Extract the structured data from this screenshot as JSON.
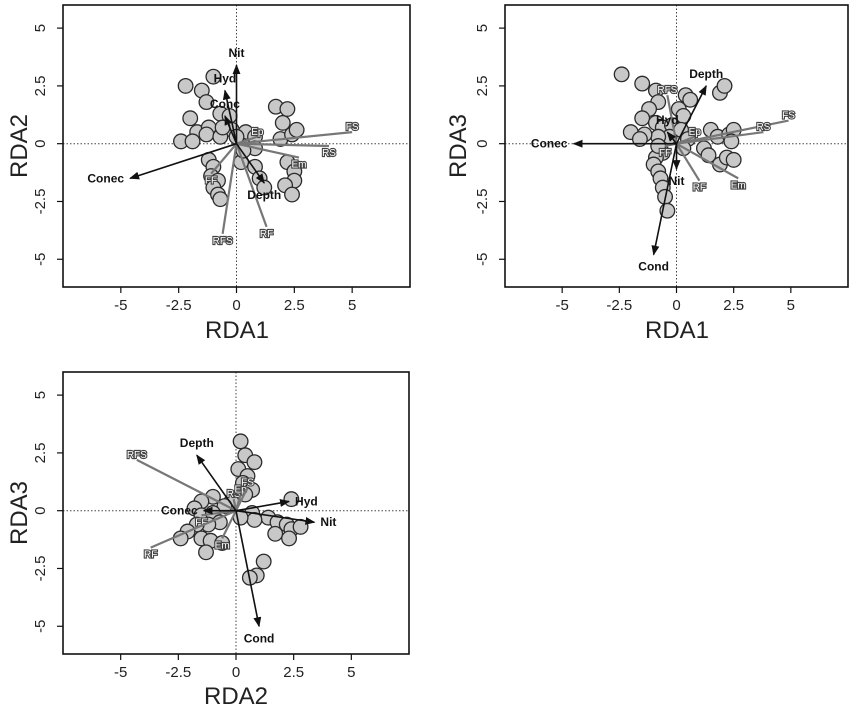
{
  "chart_data": [
    {
      "type": "scatter",
      "xlabel": "RDA1",
      "ylabel": "RDA2",
      "xlim": [
        -7.5,
        7.5
      ],
      "ylim": [
        -6.2,
        6
      ],
      "xticks": [
        "-5",
        "-2.5",
        "0",
        "2.5",
        "5"
      ],
      "yticks": [
        "-5",
        "-2.5",
        "0",
        "2.5",
        "5"
      ],
      "points": [
        [
          -2.2,
          2.5
        ],
        [
          -1.5,
          2.3
        ],
        [
          -1.0,
          2.9
        ],
        [
          -1.3,
          1.8
        ],
        [
          -2.0,
          1.1
        ],
        [
          -1.7,
          0.5
        ],
        [
          -1.2,
          0.7
        ],
        [
          -0.7,
          1.3
        ],
        [
          -0.3,
          1.2
        ],
        [
          -0.2,
          0.6
        ],
        [
          -2.4,
          0.1
        ],
        [
          -1.9,
          0.1
        ],
        [
          -1.3,
          0.4
        ],
        [
          -0.7,
          0.3
        ],
        [
          -0.6,
          0.7
        ],
        [
          0.4,
          0.5
        ],
        [
          0.8,
          0.3
        ],
        [
          0.3,
          -0.1
        ],
        [
          0.8,
          -0.2
        ],
        [
          -1.2,
          -0.7
        ],
        [
          -1.0,
          -1.0
        ],
        [
          -1.1,
          -1.4
        ],
        [
          -0.8,
          -1.6
        ],
        [
          -1.0,
          -1.9
        ],
        [
          -0.8,
          -2.2
        ],
        [
          -0.7,
          -2.4
        ],
        [
          0.2,
          -0.8
        ],
        [
          0.8,
          -1.0
        ],
        [
          1.0,
          -1.5
        ],
        [
          1.2,
          -1.9
        ],
        [
          1.9,
          0.2
        ],
        [
          2.4,
          0.4
        ],
        [
          2.6,
          0.6
        ],
        [
          2.0,
          0.9
        ],
        [
          1.7,
          1.6
        ],
        [
          2.2,
          1.5
        ],
        [
          2.2,
          -0.8
        ],
        [
          2.5,
          -1.2
        ],
        [
          2.5,
          -1.6
        ],
        [
          2.1,
          -1.8
        ],
        [
          2.4,
          -2.2
        ],
        [
          0.0,
          0.3
        ],
        [
          0.3,
          -0.3
        ]
      ],
      "env_vectors": [
        {
          "label": "Nit",
          "x": 0.0,
          "y": 3.4
        },
        {
          "label": "Hyd",
          "x": -0.5,
          "y": 2.3
        },
        {
          "label": "Conc",
          "x": -0.5,
          "y": 1.2
        },
        {
          "label": "Conec",
          "x": -4.6,
          "y": -1.5
        },
        {
          "label": "Depth",
          "x": 1.2,
          "y": -1.7
        }
      ],
      "species_vectors": [
        {
          "label": "Ep",
          "x": 0.9,
          "y": 0.3
        },
        {
          "label": "FS",
          "x": 5.0,
          "y": 0.5
        },
        {
          "label": "RS",
          "x": 4.0,
          "y": -0.1
        },
        {
          "label": "Em",
          "x": 2.7,
          "y": -0.6
        },
        {
          "label": "FF",
          "x": -1.1,
          "y": -1.3
        },
        {
          "label": "RFS",
          "x": -0.6,
          "y": -3.9
        },
        {
          "label": "RF",
          "x": 1.3,
          "y": -3.6
        }
      ]
    },
    {
      "type": "scatter",
      "xlabel": "RDA1",
      "ylabel": "RDA3",
      "xlim": [
        -7.5,
        7.5
      ],
      "ylim": [
        -6.2,
        6
      ],
      "xticks": [
        "-5",
        "-2.5",
        "0",
        "2.5",
        "5"
      ],
      "yticks": [
        "-5",
        "-2.5",
        "0",
        "2.5",
        "5"
      ],
      "points": [
        [
          -2.4,
          3.0
        ],
        [
          -1.5,
          2.6
        ],
        [
          -0.9,
          2.3
        ],
        [
          -0.8,
          1.8
        ],
        [
          -1.2,
          1.5
        ],
        [
          -1.5,
          1.1
        ],
        [
          -0.9,
          0.9
        ],
        [
          -0.6,
          0.7
        ],
        [
          -0.2,
          0.8
        ],
        [
          -0.3,
          0.3
        ],
        [
          -0.8,
          0.3
        ],
        [
          -1.4,
          0.4
        ],
        [
          -2.0,
          0.5
        ],
        [
          -1.6,
          0.2
        ],
        [
          -0.6,
          -0.4
        ],
        [
          -0.9,
          -0.6
        ],
        [
          -1.0,
          -0.9
        ],
        [
          -0.8,
          -1.2
        ],
        [
          -0.7,
          -1.5
        ],
        [
          -0.6,
          -1.9
        ],
        [
          -0.5,
          -2.3
        ],
        [
          -0.4,
          -2.9
        ],
        [
          -0.8,
          -0.1
        ],
        [
          0.4,
          2.1
        ],
        [
          0.6,
          1.9
        ],
        [
          0.1,
          1.5
        ],
        [
          0.3,
          1.2
        ],
        [
          0.2,
          0.6
        ],
        [
          0.5,
          0.2
        ],
        [
          0.3,
          -0.2
        ],
        [
          1.5,
          0.6
        ],
        [
          1.8,
          0.3
        ],
        [
          2.3,
          0.4
        ],
        [
          2.5,
          0.6
        ],
        [
          2.4,
          0.1
        ],
        [
          1.2,
          -0.2
        ],
        [
          1.4,
          -0.5
        ],
        [
          1.9,
          -0.9
        ],
        [
          2.2,
          -0.6
        ],
        [
          2.5,
          -0.7
        ],
        [
          1.9,
          2.2
        ],
        [
          2.1,
          2.5
        ]
      ],
      "env_vectors": [
        {
          "label": "Depth",
          "x": 1.3,
          "y": 2.5
        },
        {
          "label": "Hyd",
          "x": -0.4,
          "y": 0.5
        },
        {
          "label": "Conec",
          "x": -4.5,
          "y": 0.0
        },
        {
          "label": "Nit",
          "x": 0.0,
          "y": -1.1
        },
        {
          "label": "Cond",
          "x": -1.0,
          "y": -4.8
        }
      ],
      "species_vectors": [
        {
          "label": "RFS",
          "x": -0.4,
          "y": 2.1
        },
        {
          "label": "Ep",
          "x": 0.8,
          "y": 0.3
        },
        {
          "label": "FS",
          "x": 4.9,
          "y": 1.0
        },
        {
          "label": "RS",
          "x": 3.8,
          "y": 0.5
        },
        {
          "label": "FF",
          "x": -0.5,
          "y": -0.1
        },
        {
          "label": "RF",
          "x": 1.0,
          "y": -1.6
        },
        {
          "label": "Em",
          "x": 2.7,
          "y": -1.5
        }
      ]
    },
    {
      "type": "scatter",
      "xlabel": "RDA2",
      "ylabel": "RDA3",
      "xlim": [
        -7.5,
        7.5
      ],
      "ylim": [
        -6.2,
        6
      ],
      "xticks": [
        "-5",
        "-2.5",
        "0",
        "2.5",
        "5"
      ],
      "yticks": [
        "-5",
        "-2.5",
        "0",
        "2.5",
        "5"
      ],
      "points": [
        [
          0.2,
          3.0
        ],
        [
          0.4,
          2.4
        ],
        [
          0.8,
          2.1
        ],
        [
          0.1,
          1.8
        ],
        [
          0.5,
          1.5
        ],
        [
          0.3,
          1.2
        ],
        [
          0.7,
          0.9
        ],
        [
          0.4,
          0.7
        ],
        [
          -0.2,
          0.4
        ],
        [
          -0.5,
          0.2
        ],
        [
          -1.0,
          0.6
        ],
        [
          -1.5,
          0.4
        ],
        [
          -1.8,
          0.1
        ],
        [
          -1.5,
          -0.2
        ],
        [
          -1.0,
          -0.1
        ],
        [
          -0.7,
          -0.5
        ],
        [
          -1.2,
          -0.6
        ],
        [
          -1.7,
          -0.6
        ],
        [
          -2.1,
          -0.9
        ],
        [
          -1.5,
          -1.2
        ],
        [
          -1.1,
          -1.3
        ],
        [
          -2.4,
          -1.2
        ],
        [
          -1.3,
          -1.8
        ],
        [
          -0.6,
          -1.4
        ],
        [
          0.7,
          -0.1
        ],
        [
          1.4,
          -0.3
        ],
        [
          1.8,
          -0.5
        ],
        [
          2.2,
          -0.6
        ],
        [
          2.4,
          -0.8
        ],
        [
          2.8,
          -0.7
        ],
        [
          1.7,
          -1.0
        ],
        [
          2.3,
          -1.2
        ],
        [
          1.2,
          -2.2
        ],
        [
          0.9,
          -2.8
        ],
        [
          0.6,
          -2.9
        ],
        [
          2.4,
          0.5
        ],
        [
          0.8,
          -0.4
        ],
        [
          0.2,
          -0.3
        ]
      ],
      "env_vectors": [
        {
          "label": "Depth",
          "x": -1.7,
          "y": 2.4
        },
        {
          "label": "Hyd",
          "x": 2.3,
          "y": 0.4
        },
        {
          "label": "Conec",
          "x": -1.4,
          "y": 0.0
        },
        {
          "label": "Nit",
          "x": 3.4,
          "y": -0.5
        },
        {
          "label": "Cond",
          "x": 1.0,
          "y": -5.0
        }
      ],
      "species_vectors": [
        {
          "label": "RFS",
          "x": -4.3,
          "y": 2.2
        },
        {
          "label": "RS",
          "x": -0.1,
          "y": 0.5
        },
        {
          "label": "Ep",
          "x": 0.2,
          "y": 0.7
        },
        {
          "label": "FS",
          "x": 0.5,
          "y": 1.0
        },
        {
          "label": "FF",
          "x": -1.5,
          "y": -0.2
        },
        {
          "label": "Em",
          "x": -0.6,
          "y": -1.2
        },
        {
          "label": "RF",
          "x": -3.7,
          "y": -1.6
        }
      ]
    }
  ]
}
